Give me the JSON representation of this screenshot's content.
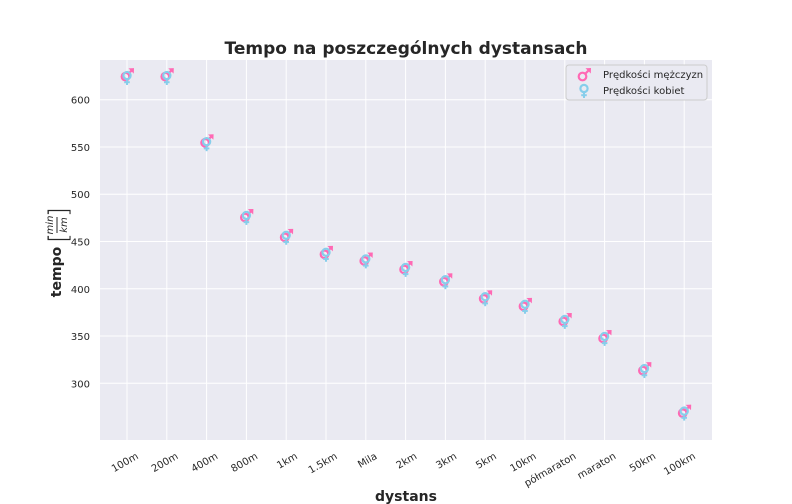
{
  "chart_data": {
    "type": "scatter",
    "title": "Tempo na poszczególnych dystansach",
    "xlabel": "dystans",
    "ylabel": {
      "prefix": "tempo",
      "numerator": "min",
      "denominator": "km"
    },
    "categories": [
      "100m",
      "200m",
      "400m",
      "800m",
      "1km",
      "1.5km",
      "Mila",
      "2km",
      "3km",
      "5km",
      "10km",
      "półmaraton",
      "maraton",
      "50km",
      "100km"
    ],
    "ylim": [
      240,
      642
    ],
    "yticks": [
      300,
      350,
      400,
      450,
      500,
      550,
      600
    ],
    "grid": true,
    "legend_position": "top-right",
    "series": [
      {
        "name": "Prędkości mężczyzn",
        "marker": "male-symbol",
        "color": "#ff69b4",
        "values": [
          626,
          626,
          556,
          477,
          456,
          438,
          431,
          422,
          409,
          391,
          383,
          367,
          349,
          315,
          270
        ]
      },
      {
        "name": "Prędkości kobiet",
        "marker": "female-symbol",
        "color": "#87ceeb",
        "values": [
          624,
          624,
          554,
          476,
          455,
          437,
          430,
          421,
          408,
          390,
          382,
          366,
          348,
          314,
          269
        ]
      }
    ]
  }
}
